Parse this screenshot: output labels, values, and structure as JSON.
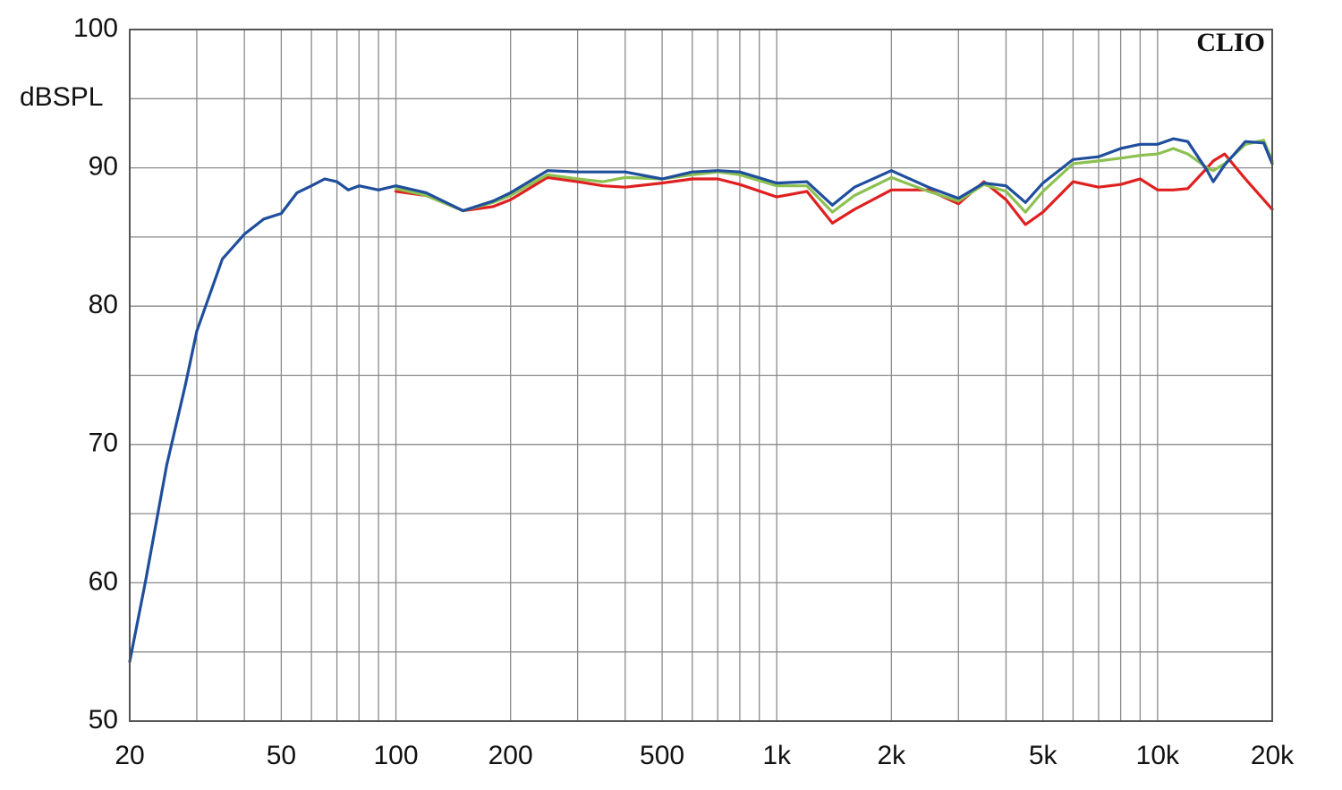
{
  "chart_data": {
    "type": "line",
    "y_label": "dBSPL",
    "annotation": "CLIO",
    "xscale": "log",
    "grid": true,
    "x": [
      20,
      22,
      25,
      28,
      30,
      35,
      40,
      45,
      50,
      55,
      60,
      65,
      70,
      75,
      80,
      90,
      100,
      120,
      150,
      180,
      200,
      250,
      300,
      350,
      400,
      500,
      600,
      700,
      800,
      1000,
      1200,
      1400,
      1600,
      2000,
      2500,
      3000,
      3500,
      4000,
      4500,
      5000,
      6000,
      7000,
      8000,
      9000,
      10000,
      11000,
      12000,
      13500,
      14000,
      15000,
      17000,
      19000,
      20000
    ],
    "series": [
      {
        "color": "#1f4e9c",
        "values": [
          54.3,
          60.1,
          68.5,
          74.3,
          78.2,
          83.4,
          85.2,
          86.3,
          86.7,
          88.2,
          88.7,
          89.2,
          89.0,
          88.4,
          88.7,
          88.4,
          88.7,
          88.2,
          86.9,
          87.6,
          88.2,
          89.8,
          89.7,
          89.7,
          89.7,
          89.2,
          89.7,
          89.8,
          89.7,
          88.9,
          89.0,
          87.3,
          88.6,
          89.8,
          88.6,
          87.8,
          88.9,
          88.7,
          87.5,
          88.9,
          90.6,
          90.8,
          91.4,
          91.7,
          91.7,
          92.1,
          91.9,
          89.8,
          89.0,
          90.2,
          91.9,
          91.8,
          90.3
        ]
      },
      {
        "color": "#8cc152",
        "values": [
          null,
          null,
          null,
          null,
          null,
          null,
          null,
          null,
          null,
          null,
          null,
          null,
          null,
          null,
          null,
          null,
          88.5,
          88.0,
          86.9,
          87.5,
          88.0,
          89.5,
          89.2,
          89.0,
          89.3,
          89.2,
          89.5,
          89.7,
          89.5,
          88.7,
          88.7,
          86.8,
          88.0,
          89.3,
          88.3,
          87.6,
          88.8,
          88.3,
          86.8,
          88.3,
          90.3,
          90.5,
          90.7,
          90.9,
          91.0,
          91.4,
          91.0,
          90.0,
          89.8,
          90.3,
          91.7,
          92.0,
          90.5
        ]
      },
      {
        "color": "#e02020",
        "values": [
          null,
          null,
          null,
          null,
          null,
          null,
          null,
          null,
          null,
          null,
          null,
          null,
          null,
          null,
          null,
          null,
          88.3,
          88.0,
          86.9,
          87.2,
          87.7,
          89.3,
          89.0,
          88.7,
          88.6,
          88.9,
          89.2,
          89.2,
          88.8,
          87.9,
          88.3,
          86.0,
          87.0,
          88.4,
          88.4,
          87.4,
          89.0,
          87.7,
          85.9,
          86.8,
          89.0,
          88.6,
          88.8,
          89.2,
          88.4,
          88.4,
          88.5,
          90.0,
          90.5,
          91.0,
          89.2,
          87.7,
          87.0
        ]
      }
    ],
    "xlim": [
      20,
      20000
    ],
    "ylim": [
      50,
      100
    ],
    "xticks": [
      20,
      50,
      100,
      200,
      500,
      {
        "value": 1000,
        "label": "1k"
      },
      {
        "value": 2000,
        "label": "2k"
      },
      {
        "value": 5000,
        "label": "5k"
      },
      {
        "value": 10000,
        "label": "10k"
      },
      {
        "value": 20000,
        "label": "20k"
      }
    ],
    "x_minor_grid": [
      30,
      40,
      60,
      70,
      80,
      90,
      300,
      400,
      600,
      700,
      800,
      900,
      3000,
      4000,
      6000,
      7000,
      8000,
      9000
    ],
    "yticks": [
      50,
      60,
      70,
      80,
      90,
      100
    ],
    "y_minor_grid": [
      55,
      65,
      75,
      85,
      95
    ]
  }
}
